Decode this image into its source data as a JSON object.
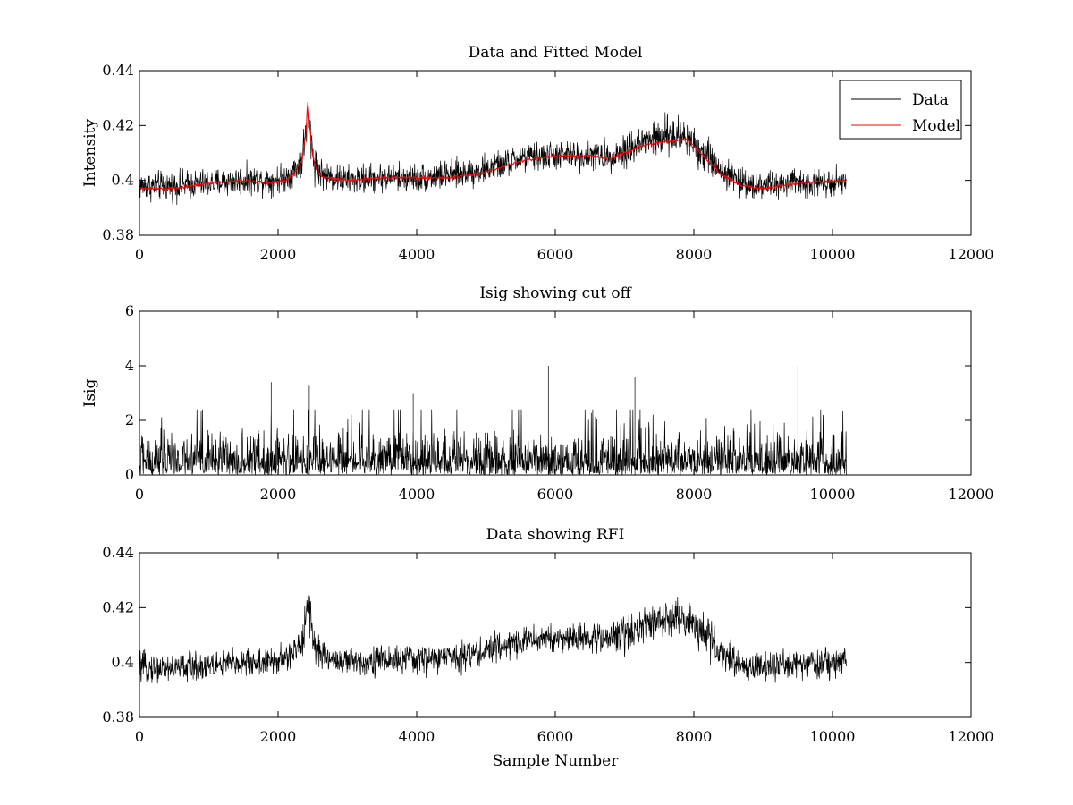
{
  "chart_data": [
    {
      "type": "line",
      "title": "Data and Fitted Model",
      "xlabel": "",
      "ylabel": "Intensity",
      "xlim": [
        0,
        12000
      ],
      "ylim": [
        0.38,
        0.44
      ],
      "xticks": [
        0,
        2000,
        4000,
        6000,
        8000,
        10000,
        12000
      ],
      "xtick_labels": [
        "0",
        "2000",
        "4000",
        "6000",
        "8000",
        "10000",
        "12000"
      ],
      "yticks": [
        0.38,
        0.4,
        0.42,
        0.44
      ],
      "ytick_labels": [
        "0.38",
        "0.4",
        "0.42",
        "0.44"
      ],
      "grid": false,
      "legend": {
        "placement": "top-right",
        "entries": [
          "Data",
          "Model"
        ]
      },
      "series": [
        {
          "name": "Data",
          "color": "#000000",
          "kind": "noisy",
          "baseline": {
            "x": [
              0,
              500,
              1000,
              1500,
              1900,
              2100,
              2250,
              2350,
              2400,
              2430,
              2460,
              2500,
              2550,
              2650,
              3000,
              3500,
              4000,
              4500,
              5000,
              5500,
              6000,
              6500,
              6800,
              7000,
              7300,
              7600,
              7900,
              8100,
              8400,
              8700,
              9000,
              9500,
              10200
            ],
            "y": [
              0.398,
              0.398,
              0.399,
              0.4,
              0.4,
              0.401,
              0.404,
              0.408,
              0.418,
              0.424,
              0.418,
              0.41,
              0.405,
              0.402,
              0.4,
              0.401,
              0.401,
              0.402,
              0.404,
              0.408,
              0.409,
              0.409,
              0.409,
              0.411,
              0.414,
              0.416,
              0.416,
              0.411,
              0.404,
              0.399,
              0.398,
              0.399,
              0.4
            ]
          },
          "noise_amplitude": 0.0045
        },
        {
          "name": "Model",
          "color": "#ff0000",
          "kind": "smooth",
          "x": [
            0,
            500,
            1000,
            1500,
            1900,
            2100,
            2250,
            2350,
            2400,
            2430,
            2460,
            2500,
            2550,
            2650,
            3000,
            3500,
            4000,
            4500,
            5000,
            5500,
            6000,
            6500,
            6800,
            7000,
            7300,
            7600,
            7900,
            8100,
            8400,
            8700,
            9000,
            9500,
            10200
          ],
          "y": [
            0.397,
            0.397,
            0.399,
            0.4,
            0.399,
            0.4,
            0.403,
            0.408,
            0.417,
            0.429,
            0.419,
            0.409,
            0.404,
            0.401,
            0.4,
            0.401,
            0.401,
            0.401,
            0.403,
            0.407,
            0.409,
            0.409,
            0.408,
            0.41,
            0.413,
            0.414,
            0.415,
            0.41,
            0.402,
            0.398,
            0.397,
            0.399,
            0.4
          ]
        }
      ]
    },
    {
      "type": "line",
      "title": "Isig showing cut off",
      "xlabel": "",
      "ylabel": "Isig",
      "xlim": [
        0,
        12000
      ],
      "ylim": [
        0,
        6
      ],
      "xticks": [
        0,
        2000,
        4000,
        6000,
        8000,
        10000,
        12000
      ],
      "xtick_labels": [
        "0",
        "2000",
        "4000",
        "6000",
        "8000",
        "10000",
        "12000"
      ],
      "yticks": [
        0,
        2,
        4,
        6
      ],
      "ytick_labels": [
        "0",
        "2",
        "4",
        "6"
      ],
      "grid": false,
      "series": [
        {
          "color": "#000000",
          "kind": "spiky",
          "x_range": [
            0,
            10200
          ],
          "typical_max": 2.0,
          "peaks": [
            [
              1900,
              3.4
            ],
            [
              2450,
              3.3
            ],
            [
              3950,
              3.0
            ],
            [
              5900,
              4.0
            ],
            [
              7150,
              3.6
            ],
            [
              9500,
              4.0
            ]
          ]
        }
      ]
    },
    {
      "type": "line",
      "title": "Data showing RFI",
      "xlabel": "Sample Number",
      "ylabel": "",
      "xlim": [
        0,
        12000
      ],
      "ylim": [
        0.38,
        0.44
      ],
      "xticks": [
        0,
        2000,
        4000,
        6000,
        8000,
        10000,
        12000
      ],
      "xtick_labels": [
        "0",
        "2000",
        "4000",
        "6000",
        "8000",
        "10000",
        "12000"
      ],
      "yticks": [
        0.38,
        0.4,
        0.42,
        0.44
      ],
      "ytick_labels": [
        "0.38",
        "0.4",
        "0.42",
        "0.44"
      ],
      "grid": false,
      "series": [
        {
          "color": "#000000",
          "kind": "noisy",
          "baseline": {
            "x": [
              0,
              500,
              1000,
              1500,
              1900,
              2100,
              2250,
              2350,
              2400,
              2430,
              2460,
              2500,
              2550,
              2650,
              3000,
              3500,
              4000,
              4500,
              5000,
              5500,
              6000,
              6500,
              6800,
              7000,
              7300,
              7600,
              7900,
              8100,
              8400,
              8700,
              9000,
              9500,
              10200
            ],
            "y": [
              0.398,
              0.398,
              0.399,
              0.4,
              0.4,
              0.401,
              0.404,
              0.408,
              0.418,
              0.424,
              0.418,
              0.41,
              0.405,
              0.402,
              0.4,
              0.401,
              0.401,
              0.402,
              0.404,
              0.408,
              0.409,
              0.409,
              0.409,
              0.411,
              0.414,
              0.416,
              0.416,
              0.411,
              0.404,
              0.399,
              0.398,
              0.399,
              0.4
            ]
          },
          "noise_amplitude": 0.0045
        }
      ]
    }
  ]
}
